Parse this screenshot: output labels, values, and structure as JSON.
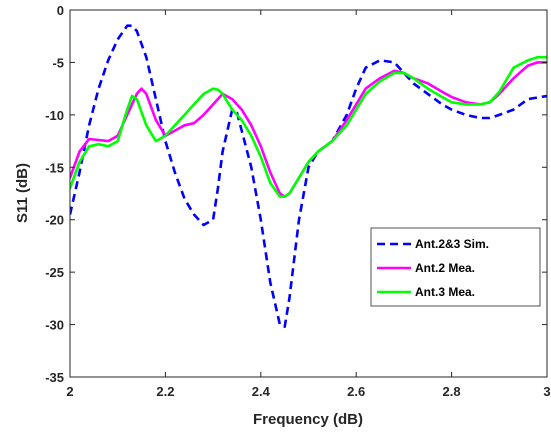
{
  "chart_data": {
    "type": "line",
    "title": "",
    "xlabel": "Frequency (dB)",
    "ylabel": "S11 (dB)",
    "xlim": [
      2,
      3
    ],
    "ylim": [
      -35,
      0
    ],
    "xticks": [
      "2",
      "2.2",
      "2.4",
      "2.6",
      "2.8",
      "3"
    ],
    "xtick_values": [
      2,
      2.2,
      2.4,
      2.6,
      2.8,
      3
    ],
    "yticks": [
      "0",
      "-5",
      "-10",
      "-15",
      "-20",
      "-25",
      "-30",
      "-35"
    ],
    "ytick_values": [
      0,
      -5,
      -10,
      -15,
      -20,
      -25,
      -30,
      -35
    ],
    "grid": false,
    "legend_position": "bottom-right",
    "series": [
      {
        "name": "Ant.2&3 Sim.",
        "color": "#0000ff",
        "dash": "dashed",
        "x": [
          2.0,
          2.02,
          2.04,
          2.06,
          2.08,
          2.1,
          2.12,
          2.13,
          2.14,
          2.16,
          2.18,
          2.2,
          2.22,
          2.24,
          2.26,
          2.28,
          2.3,
          2.31,
          2.32,
          2.34,
          2.35,
          2.36,
          2.38,
          2.4,
          2.42,
          2.44,
          2.45,
          2.46,
          2.48,
          2.5,
          2.52,
          2.55,
          2.58,
          2.6,
          2.62,
          2.65,
          2.68,
          2.7,
          2.72,
          2.75,
          2.78,
          2.8,
          2.83,
          2.86,
          2.88,
          2.9,
          2.93,
          2.96,
          3.0
        ],
        "y": [
          -19.5,
          -15.5,
          -11.0,
          -7.5,
          -4.8,
          -2.8,
          -1.5,
          -1.5,
          -2.0,
          -4.5,
          -8.5,
          -12.5,
          -15.5,
          -18.0,
          -19.5,
          -20.5,
          -20.0,
          -17.0,
          -13.5,
          -9.5,
          -9.8,
          -11.5,
          -15.0,
          -20.0,
          -26.0,
          -30.0,
          -30.2,
          -27.5,
          -20.0,
          -15.0,
          -13.5,
          -12.5,
          -10.0,
          -7.5,
          -5.5,
          -4.8,
          -5.0,
          -6.0,
          -7.0,
          -8.0,
          -9.0,
          -9.5,
          -10.0,
          -10.3,
          -10.3,
          -10.0,
          -9.5,
          -8.5,
          -8.2
        ]
      },
      {
        "name": "Ant.2 Mea.",
        "color": "#ff00ff",
        "dash": "solid",
        "x": [
          2.0,
          2.02,
          2.04,
          2.06,
          2.08,
          2.1,
          2.12,
          2.14,
          2.15,
          2.16,
          2.18,
          2.2,
          2.22,
          2.24,
          2.26,
          2.28,
          2.3,
          2.32,
          2.34,
          2.36,
          2.38,
          2.4,
          2.42,
          2.44,
          2.45,
          2.46,
          2.48,
          2.5,
          2.52,
          2.55,
          2.58,
          2.6,
          2.62,
          2.65,
          2.68,
          2.7,
          2.72,
          2.75,
          2.78,
          2.8,
          2.83,
          2.86,
          2.88,
          2.9,
          2.93,
          2.96,
          2.98,
          3.0
        ],
        "y": [
          -16.0,
          -13.5,
          -12.3,
          -12.4,
          -12.5,
          -12.0,
          -10.0,
          -8.0,
          -7.5,
          -8.0,
          -10.5,
          -12.0,
          -11.5,
          -11.0,
          -10.8,
          -10.0,
          -9.0,
          -8.0,
          -8.5,
          -9.5,
          -11.0,
          -13.0,
          -15.5,
          -17.5,
          -17.8,
          -17.5,
          -16.0,
          -14.5,
          -13.5,
          -12.5,
          -10.5,
          -9.0,
          -7.5,
          -6.5,
          -5.8,
          -6.0,
          -6.5,
          -7.0,
          -7.8,
          -8.3,
          -8.8,
          -9.0,
          -8.8,
          -8.0,
          -6.5,
          -5.3,
          -5.0,
          -5.0
        ]
      },
      {
        "name": "Ant.3 Mea.",
        "color": "#00ff00",
        "dash": "solid",
        "x": [
          2.0,
          2.02,
          2.04,
          2.06,
          2.08,
          2.1,
          2.12,
          2.13,
          2.14,
          2.16,
          2.18,
          2.2,
          2.22,
          2.24,
          2.26,
          2.28,
          2.3,
          2.31,
          2.32,
          2.34,
          2.36,
          2.38,
          2.4,
          2.42,
          2.44,
          2.45,
          2.46,
          2.48,
          2.5,
          2.52,
          2.55,
          2.58,
          2.6,
          2.62,
          2.65,
          2.68,
          2.7,
          2.72,
          2.75,
          2.78,
          2.8,
          2.83,
          2.86,
          2.88,
          2.9,
          2.93,
          2.96,
          2.98,
          3.0
        ],
        "y": [
          -17.0,
          -14.5,
          -13.0,
          -12.8,
          -13.0,
          -12.5,
          -9.5,
          -8.2,
          -8.5,
          -11.0,
          -12.5,
          -12.0,
          -11.0,
          -10.0,
          -9.0,
          -8.0,
          -7.5,
          -7.6,
          -8.0,
          -9.5,
          -10.5,
          -12.0,
          -14.0,
          -16.5,
          -17.8,
          -17.8,
          -17.5,
          -16.0,
          -14.5,
          -13.5,
          -12.5,
          -11.0,
          -9.5,
          -8.0,
          -6.8,
          -6.0,
          -6.0,
          -6.5,
          -7.5,
          -8.3,
          -8.8,
          -9.0,
          -9.0,
          -8.8,
          -7.8,
          -5.5,
          -4.8,
          -4.5,
          -4.5
        ]
      }
    ]
  }
}
